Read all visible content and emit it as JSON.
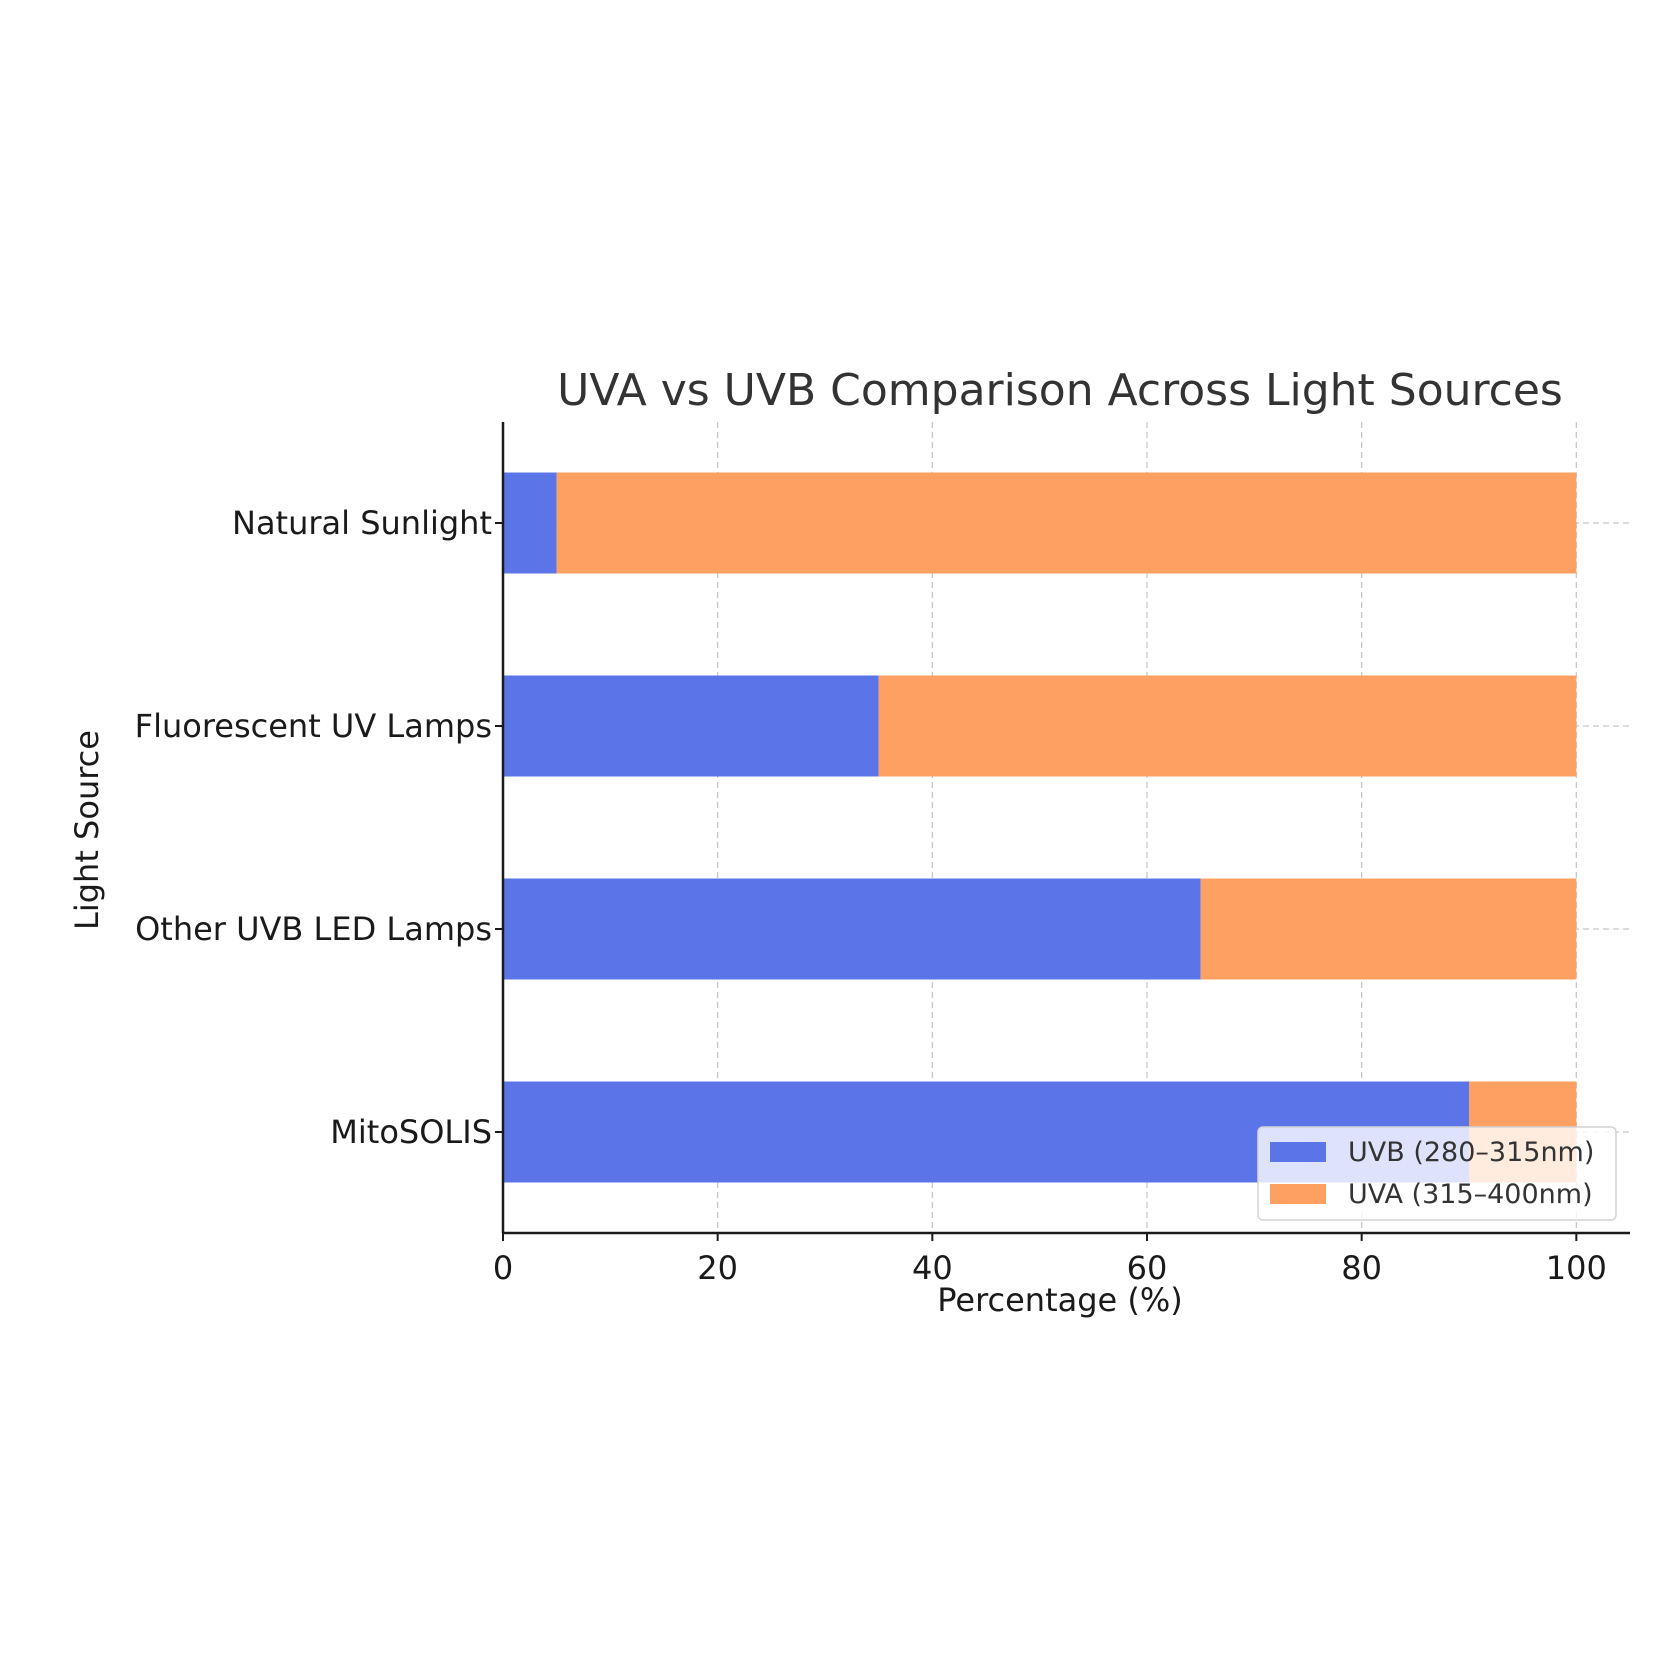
{
  "chart_data": {
    "type": "bar",
    "orientation": "horizontal",
    "stacked": true,
    "title": "UVA vs UVB Comparison Across Light Sources",
    "xlabel": "Percentage (%)",
    "ylabel": "Light Source",
    "xlim": [
      0,
      105
    ],
    "xticks": [
      "0",
      "20",
      "40",
      "60",
      "80",
      "100"
    ],
    "categories": [
      "MitoSOLIS",
      "Other UVB LED Lamps",
      "Fluorescent UV Lamps",
      "Natural Sunlight"
    ],
    "series": [
      {
        "name": "UVB (280–315nm)",
        "values": [
          90,
          65,
          35,
          5
        ],
        "color": "#5b74e8"
      },
      {
        "name": "UVA (315–400nm)",
        "values": [
          10,
          35,
          65,
          95
        ],
        "color": "#fea062"
      }
    ],
    "grid": true,
    "legend": "lower-right"
  }
}
